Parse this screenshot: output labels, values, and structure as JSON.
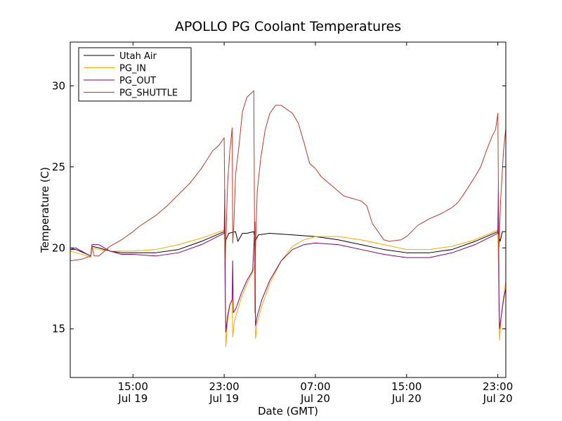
{
  "chart_data": {
    "type": "line",
    "title": "APOLLO PG Coolant Temperatures",
    "xlabel": "Date (GMT)",
    "ylabel": "Temperature (C)",
    "xlim": [
      9.5,
      47.7
    ],
    "ylim": [
      12,
      32.7
    ],
    "legend_position": "top-left",
    "grid": false,
    "x_ticks": [
      {
        "value": 15,
        "line1": "15:00",
        "line2": "Jul 19"
      },
      {
        "value": 23,
        "line1": "23:00",
        "line2": "Jul 19"
      },
      {
        "value": 31,
        "line1": "07:00",
        "line2": "Jul 20"
      },
      {
        "value": 39,
        "line1": "15:00",
        "line2": "Jul 20"
      },
      {
        "value": 47,
        "line1": "23:00",
        "line2": "Jul 20"
      }
    ],
    "y_ticks": [
      15,
      20,
      25,
      30
    ],
    "x_unit_note": "hours since Jul 19 00:00 GMT",
    "series": [
      {
        "name": "Utah Air",
        "color": "#000000",
        "points": [
          [
            9.5,
            19.9
          ],
          [
            10.0,
            19.9
          ],
          [
            11.0,
            19.6
          ],
          [
            11.3,
            19.5
          ],
          [
            11.4,
            20.1
          ],
          [
            12.0,
            20.0
          ],
          [
            13.0,
            19.8
          ],
          [
            14.0,
            19.7
          ],
          [
            15.0,
            19.7
          ],
          [
            17.0,
            19.7
          ],
          [
            19.0,
            19.9
          ],
          [
            21.0,
            20.4
          ],
          [
            23.0,
            21.0
          ],
          [
            23.1,
            20.4
          ],
          [
            23.4,
            20.9
          ],
          [
            24.0,
            21.0
          ],
          [
            24.2,
            20.4
          ],
          [
            24.6,
            20.9
          ],
          [
            25.0,
            20.9
          ],
          [
            25.6,
            21.0
          ],
          [
            25.7,
            20.4
          ],
          [
            26.0,
            20.8
          ],
          [
            27.0,
            20.9
          ],
          [
            29.0,
            20.8
          ],
          [
            31.0,
            20.7
          ],
          [
            33.0,
            20.5
          ],
          [
            35.0,
            20.2
          ],
          [
            37.0,
            19.9
          ],
          [
            39.0,
            19.7
          ],
          [
            41.0,
            19.7
          ],
          [
            43.0,
            19.9
          ],
          [
            45.0,
            20.4
          ],
          [
            47.0,
            21.0
          ],
          [
            47.2,
            20.4
          ],
          [
            47.4,
            21.0
          ],
          [
            47.7,
            21.0
          ]
        ]
      },
      {
        "name": "PG_IN",
        "color": "#ffa500",
        "points": [
          [
            9.5,
            19.8
          ],
          [
            10.0,
            19.7
          ],
          [
            11.0,
            19.5
          ],
          [
            11.3,
            19.4
          ],
          [
            11.4,
            20.0
          ],
          [
            12.0,
            19.9
          ],
          [
            13.0,
            19.8
          ],
          [
            15.0,
            19.8
          ],
          [
            17.0,
            19.9
          ],
          [
            19.0,
            20.2
          ],
          [
            21.0,
            20.6
          ],
          [
            23.0,
            21.1
          ],
          [
            23.1,
            16.5
          ],
          [
            23.15,
            13.9
          ],
          [
            23.3,
            15.5
          ],
          [
            23.5,
            16.5
          ],
          [
            23.7,
            16.8
          ],
          [
            23.75,
            14.5
          ],
          [
            23.9,
            15.5
          ],
          [
            24.5,
            16.9
          ],
          [
            25.0,
            17.8
          ],
          [
            25.5,
            18.5
          ],
          [
            25.7,
            19.0
          ],
          [
            25.75,
            14.4
          ],
          [
            25.9,
            15.4
          ],
          [
            26.3,
            16.4
          ],
          [
            27.0,
            17.8
          ],
          [
            28.0,
            19.2
          ],
          [
            29.0,
            20.1
          ],
          [
            30.0,
            20.5
          ],
          [
            31.0,
            20.7
          ],
          [
            33.0,
            20.7
          ],
          [
            35.0,
            20.5
          ],
          [
            37.0,
            20.2
          ],
          [
            39.0,
            19.9
          ],
          [
            41.0,
            19.9
          ],
          [
            43.0,
            20.1
          ],
          [
            45.0,
            20.5
          ],
          [
            47.0,
            21.1
          ],
          [
            47.1,
            16.5
          ],
          [
            47.15,
            14.3
          ],
          [
            47.3,
            15.8
          ],
          [
            47.5,
            17.0
          ],
          [
            47.7,
            17.9
          ]
        ]
      },
      {
        "name": "PG_OUT",
        "color": "#800080",
        "points": [
          [
            9.5,
            19.9
          ],
          [
            10.0,
            20.0
          ],
          [
            11.0,
            19.6
          ],
          [
            11.3,
            19.5
          ],
          [
            11.4,
            20.2
          ],
          [
            12.0,
            20.2
          ],
          [
            13.0,
            19.8
          ],
          [
            14.0,
            19.6
          ],
          [
            15.0,
            19.6
          ],
          [
            17.0,
            19.5
          ],
          [
            19.0,
            19.7
          ],
          [
            21.0,
            20.2
          ],
          [
            23.0,
            20.9
          ],
          [
            23.05,
            23.6
          ],
          [
            23.1,
            17.0
          ],
          [
            23.15,
            14.8
          ],
          [
            23.3,
            15.8
          ],
          [
            23.5,
            16.5
          ],
          [
            23.7,
            16.8
          ],
          [
            23.75,
            19.2
          ],
          [
            23.8,
            16.0
          ],
          [
            24.0,
            16.2
          ],
          [
            24.5,
            17.2
          ],
          [
            25.0,
            18.0
          ],
          [
            25.5,
            18.6
          ],
          [
            25.7,
            21.6
          ],
          [
            25.75,
            15.2
          ],
          [
            25.9,
            15.8
          ],
          [
            26.3,
            16.8
          ],
          [
            27.0,
            18.0
          ],
          [
            28.0,
            19.2
          ],
          [
            29.0,
            19.9
          ],
          [
            30.0,
            20.2
          ],
          [
            31.0,
            20.3
          ],
          [
            33.0,
            20.2
          ],
          [
            35.0,
            19.9
          ],
          [
            37.0,
            19.6
          ],
          [
            39.0,
            19.4
          ],
          [
            41.0,
            19.4
          ],
          [
            43.0,
            19.7
          ],
          [
            45.0,
            20.2
          ],
          [
            47.0,
            20.9
          ],
          [
            47.05,
            24.0
          ],
          [
            47.1,
            17.0
          ],
          [
            47.15,
            15.0
          ],
          [
            47.3,
            15.8
          ],
          [
            47.5,
            16.8
          ],
          [
            47.7,
            17.5
          ]
        ]
      },
      {
        "name": "PG_SHUTTLE",
        "color": "#c0392b",
        "points": [
          [
            9.5,
            19.2
          ],
          [
            10.5,
            19.3
          ],
          [
            11.3,
            19.5
          ],
          [
            11.4,
            20.1
          ],
          [
            11.6,
            19.5
          ],
          [
            12.0,
            19.5
          ],
          [
            13.0,
            20.1
          ],
          [
            14.0,
            20.5
          ],
          [
            15.0,
            21.0
          ],
          [
            15.5,
            21.3
          ],
          [
            17.0,
            22.0
          ],
          [
            18.0,
            22.6
          ],
          [
            19.0,
            23.3
          ],
          [
            20.0,
            24.0
          ],
          [
            21.0,
            24.9
          ],
          [
            22.0,
            26.0
          ],
          [
            22.5,
            26.3
          ],
          [
            23.0,
            26.8
          ],
          [
            23.05,
            23.0
          ],
          [
            23.1,
            19.2
          ],
          [
            23.3,
            24.0
          ],
          [
            23.5,
            26.0
          ],
          [
            23.7,
            27.4
          ],
          [
            23.75,
            20.3
          ],
          [
            23.85,
            21.5
          ],
          [
            24.0,
            24.5
          ],
          [
            24.3,
            26.3
          ],
          [
            24.6,
            28.4
          ],
          [
            25.0,
            29.3
          ],
          [
            25.6,
            29.7
          ],
          [
            25.7,
            16.0
          ],
          [
            25.75,
            20.0
          ],
          [
            25.9,
            23.5
          ],
          [
            26.2,
            25.5
          ],
          [
            26.6,
            27.3
          ],
          [
            27.0,
            28.3
          ],
          [
            27.5,
            28.8
          ],
          [
            28.0,
            28.8
          ],
          [
            29.0,
            28.3
          ],
          [
            29.5,
            27.7
          ],
          [
            30.0,
            26.5
          ],
          [
            30.5,
            25.2
          ],
          [
            31.0,
            24.9
          ],
          [
            31.5,
            24.4
          ],
          [
            32.5,
            23.8
          ],
          [
            33.5,
            23.2
          ],
          [
            35.0,
            22.9
          ],
          [
            35.5,
            22.6
          ],
          [
            36.0,
            21.5
          ],
          [
            37.0,
            20.5
          ],
          [
            37.5,
            20.4
          ],
          [
            38.5,
            20.5
          ],
          [
            39.0,
            20.7
          ],
          [
            40.0,
            21.4
          ],
          [
            41.0,
            21.8
          ],
          [
            42.0,
            22.1
          ],
          [
            43.0,
            22.5
          ],
          [
            43.5,
            22.8
          ],
          [
            44.0,
            23.3
          ],
          [
            45.0,
            24.4
          ],
          [
            45.5,
            25.0
          ],
          [
            46.0,
            26.0
          ],
          [
            46.5,
            26.9
          ],
          [
            46.8,
            27.3
          ],
          [
            47.0,
            28.3
          ],
          [
            47.05,
            24.0
          ],
          [
            47.1,
            20.0
          ],
          [
            47.25,
            23.0
          ],
          [
            47.5,
            26.0
          ],
          [
            47.7,
            27.4
          ]
        ]
      }
    ]
  }
}
